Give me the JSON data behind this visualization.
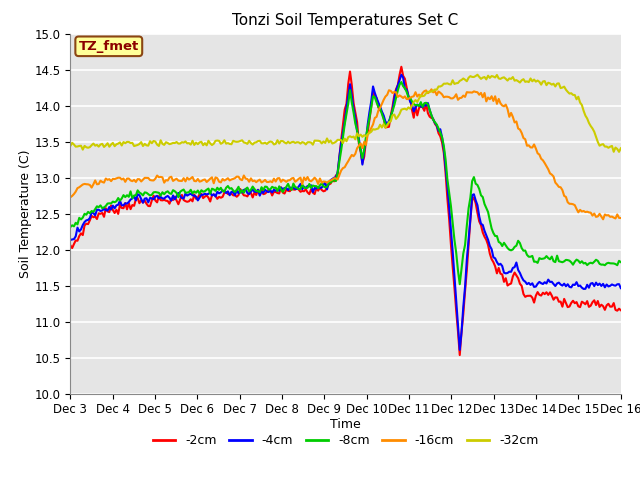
{
  "title": "Tonzi Soil Temperatures Set C",
  "xlabel": "Time",
  "ylabel": "Soil Temperature (C)",
  "ylim": [
    10.0,
    15.0
  ],
  "yticks": [
    10.0,
    10.5,
    11.0,
    11.5,
    12.0,
    12.5,
    13.0,
    13.5,
    14.0,
    14.5,
    15.0
  ],
  "xtick_labels": [
    "Dec 3",
    "Dec 4",
    "Dec 5",
    "Dec 6",
    "Dec 7",
    "Dec 8",
    "Dec 9",
    "Dec 10",
    "Dec 11",
    "Dec 12",
    "Dec 13",
    "Dec 14",
    "Dec 15",
    "Dec 16"
  ],
  "annotation_text": "TZ_fmet",
  "annotation_color": "#8B0000",
  "annotation_bg": "#FFFF99",
  "annotation_border": "#8B4513",
  "legend_labels": [
    "-2cm",
    "-4cm",
    "-8cm",
    "-16cm",
    "-32cm"
  ],
  "line_colors": [
    "#FF0000",
    "#0000FF",
    "#00CC00",
    "#FF8C00",
    "#CCCC00"
  ],
  "line_widths": [
    1.5,
    1.5,
    1.5,
    1.5,
    1.5
  ],
  "bg_color": "#E5E5E5",
  "fig_bg_color": "#FFFFFF"
}
